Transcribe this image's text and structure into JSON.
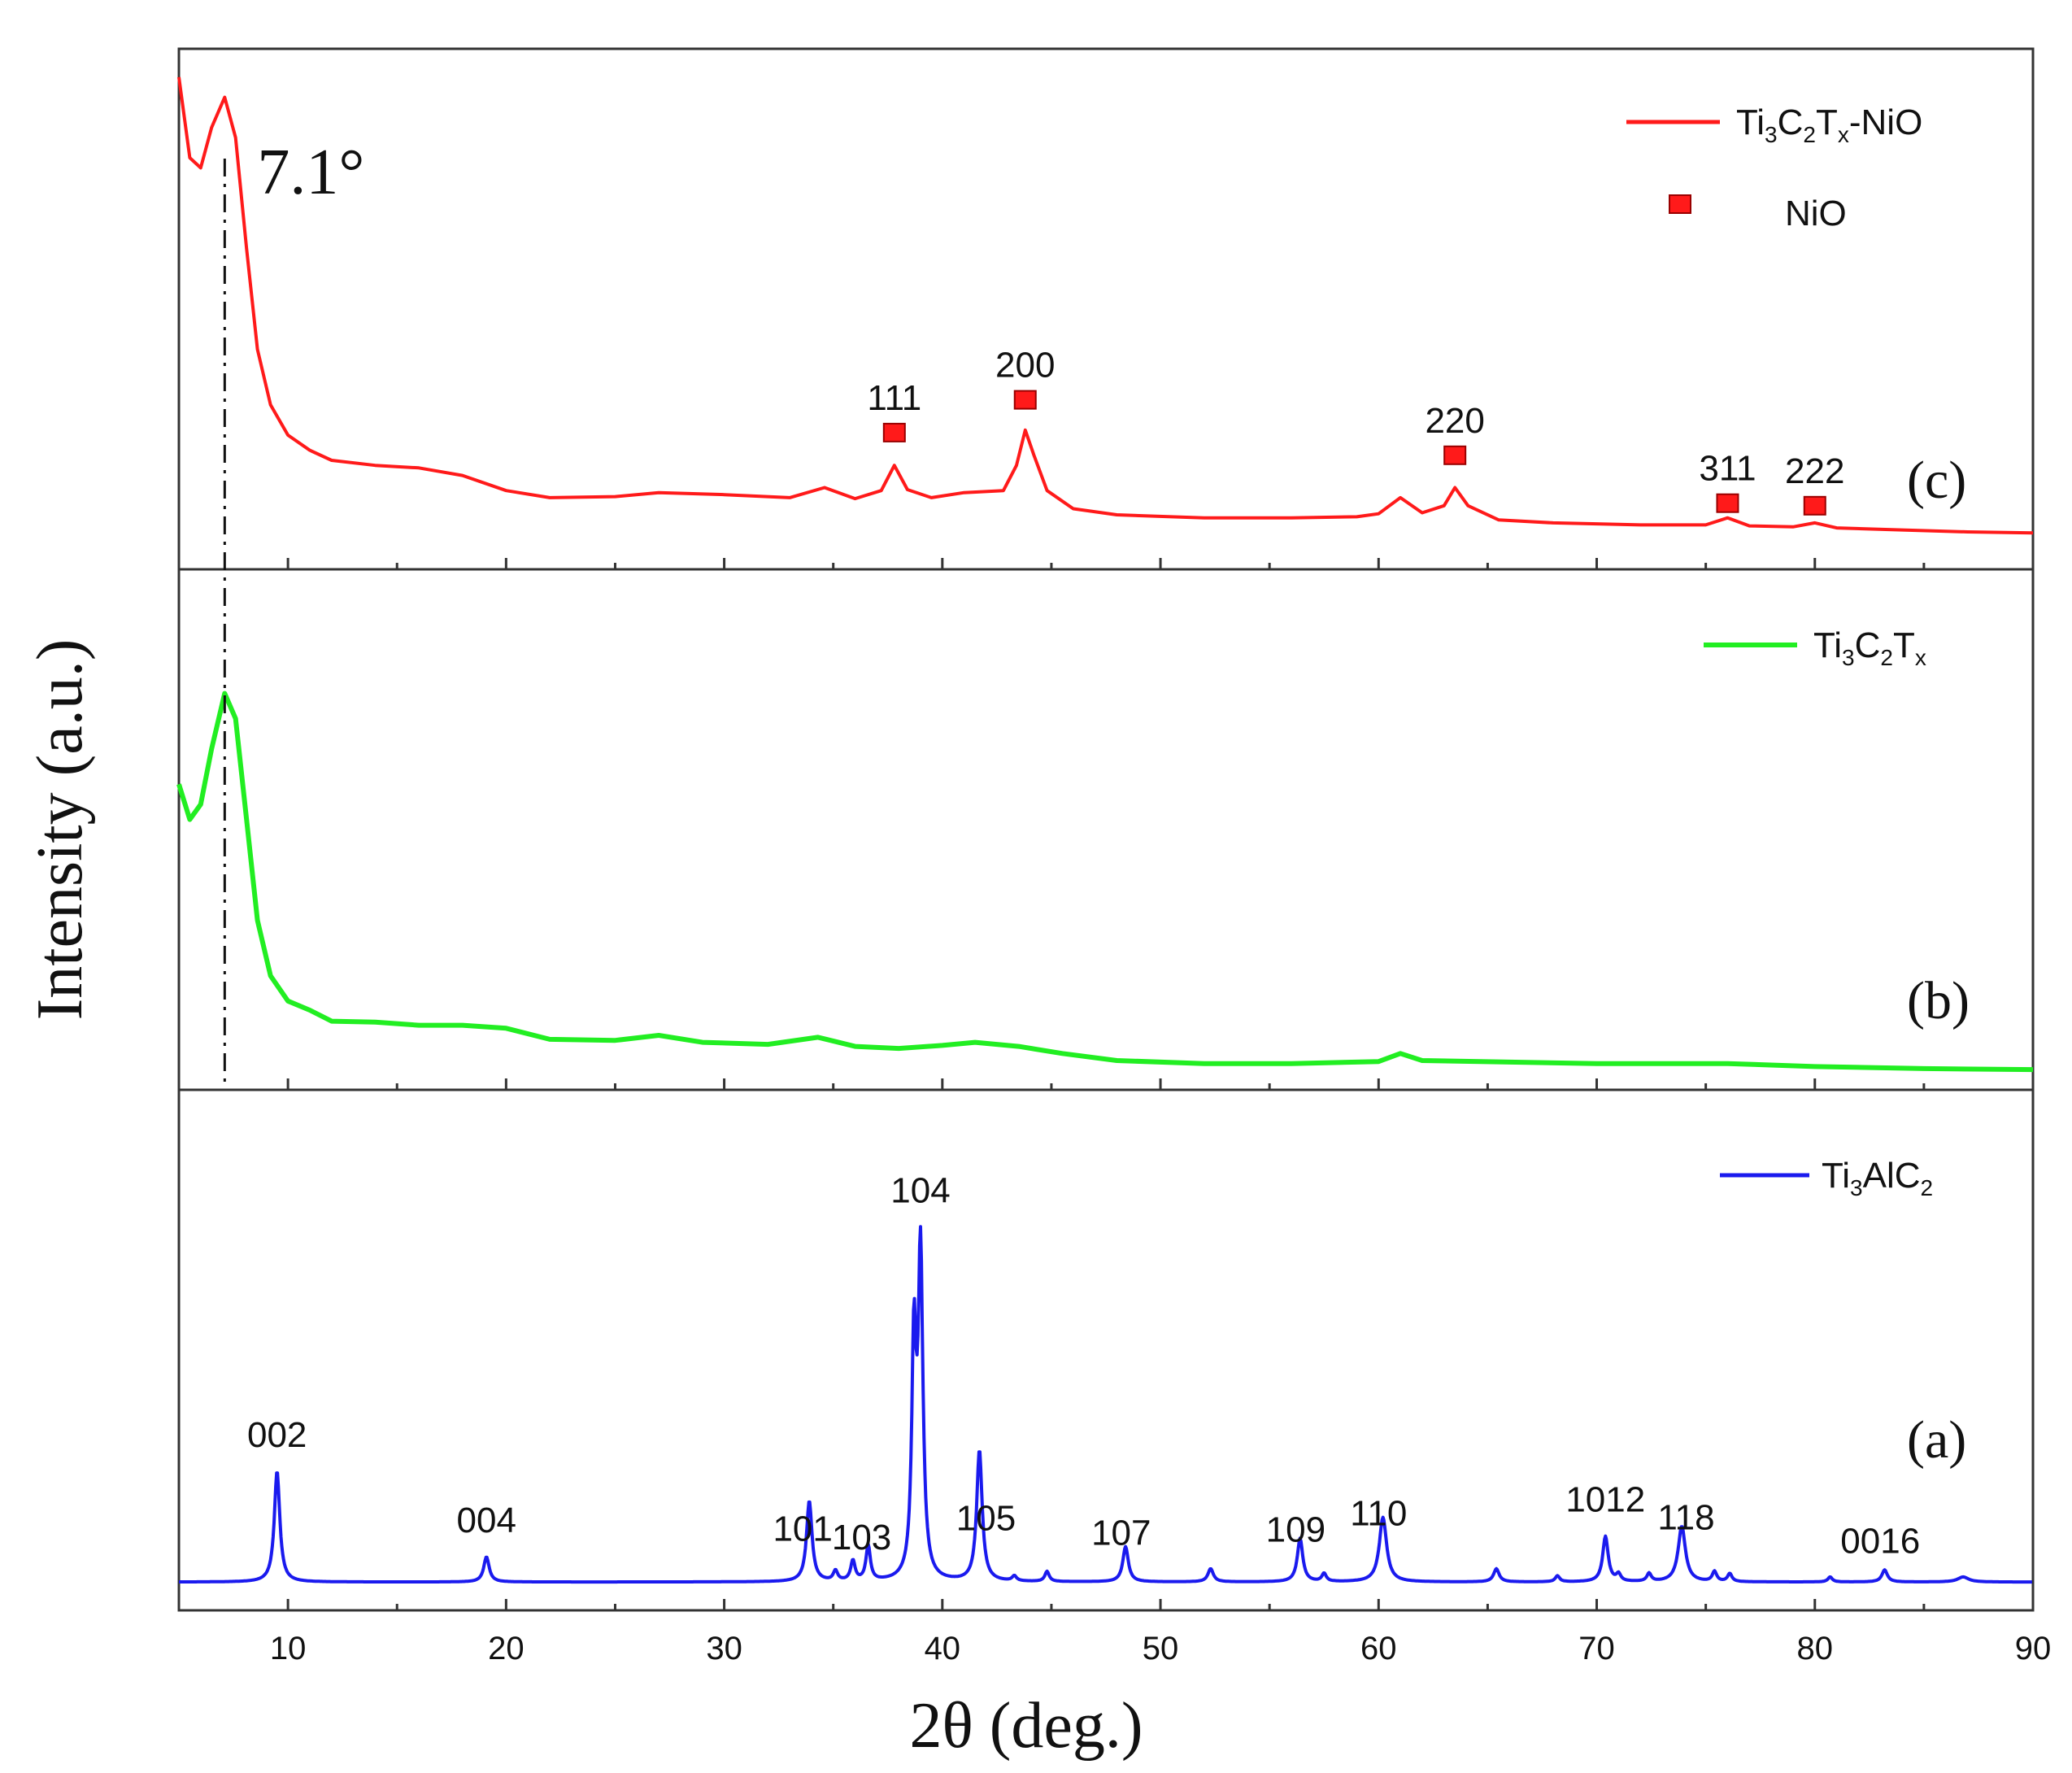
{
  "chart_data": {
    "type": "line",
    "xlabel": "2θ (deg.)",
    "ylabel": "Intensity (a.u.)",
    "xlim": [
      5,
      90
    ],
    "xticks": [
      10,
      20,
      30,
      40,
      50,
      60,
      70,
      80,
      90
    ],
    "xtick_labels": [
      "10",
      "20",
      "30",
      "40",
      "50",
      "60",
      "70",
      "80",
      "90"
    ],
    "reference_line": {
      "x": 7.1,
      "label": "7.1°"
    },
    "panels": [
      {
        "id": "c",
        "panel_label": "(c)",
        "color": "#ff1a1a",
        "legend": {
          "prefix": "Ti",
          "s1": "3",
          "mid": "C",
          "s2": "2",
          "mid2": "T",
          "s3": "x",
          "suffix": "-NiO"
        },
        "marker_legend": {
          "label": "NiO",
          "color": "#ff1a1a"
        },
        "ylim": [
          0,
          100
        ],
        "series": [
          {
            "x": 5,
            "y": 96
          },
          {
            "x": 5.5,
            "y": 80
          },
          {
            "x": 6.0,
            "y": 78
          },
          {
            "x": 6.5,
            "y": 86
          },
          {
            "x": 7.1,
            "y": 92
          },
          {
            "x": 7.6,
            "y": 84
          },
          {
            "x": 8.1,
            "y": 62
          },
          {
            "x": 8.6,
            "y": 42
          },
          {
            "x": 9.2,
            "y": 31
          },
          {
            "x": 10,
            "y": 25
          },
          {
            "x": 11,
            "y": 22
          },
          {
            "x": 12,
            "y": 20
          },
          {
            "x": 14,
            "y": 19
          },
          {
            "x": 16,
            "y": 18.5
          },
          {
            "x": 18,
            "y": 17
          },
          {
            "x": 20,
            "y": 14
          },
          {
            "x": 22,
            "y": 12.6
          },
          {
            "x": 25,
            "y": 12.8
          },
          {
            "x": 27,
            "y": 13.6
          },
          {
            "x": 30,
            "y": 13.2
          },
          {
            "x": 33,
            "y": 12.6
          },
          {
            "x": 34.6,
            "y": 14.6
          },
          {
            "x": 36,
            "y": 12.4
          },
          {
            "x": 37.2,
            "y": 14
          },
          {
            "x": 37.8,
            "y": 19
          },
          {
            "x": 38.4,
            "y": 14.2
          },
          {
            "x": 39.5,
            "y": 12.6
          },
          {
            "x": 41,
            "y": 13.6
          },
          {
            "x": 42.8,
            "y": 14
          },
          {
            "x": 43.4,
            "y": 19
          },
          {
            "x": 43.8,
            "y": 26
          },
          {
            "x": 44.2,
            "y": 21
          },
          {
            "x": 44.8,
            "y": 14
          },
          {
            "x": 46,
            "y": 10.4
          },
          {
            "x": 48,
            "y": 9.2
          },
          {
            "x": 52,
            "y": 8.6
          },
          {
            "x": 56,
            "y": 8.6
          },
          {
            "x": 59,
            "y": 8.8
          },
          {
            "x": 60,
            "y": 9.4
          },
          {
            "x": 61,
            "y": 12.6
          },
          {
            "x": 62,
            "y": 9.6
          },
          {
            "x": 63,
            "y": 11
          },
          {
            "x": 63.5,
            "y": 14.6
          },
          {
            "x": 64.1,
            "y": 11
          },
          {
            "x": 65.5,
            "y": 8.2
          },
          {
            "x": 68,
            "y": 7.6
          },
          {
            "x": 72,
            "y": 7.2
          },
          {
            "x": 75,
            "y": 7.2
          },
          {
            "x": 76,
            "y": 8.6
          },
          {
            "x": 77,
            "y": 7
          },
          {
            "x": 79,
            "y": 6.8
          },
          {
            "x": 80,
            "y": 7.6
          },
          {
            "x": 81,
            "y": 6.6
          },
          {
            "x": 84,
            "y": 6.2
          },
          {
            "x": 87,
            "y": 5.8
          },
          {
            "x": 90,
            "y": 5.6
          }
        ],
        "markers": [
          {
            "x": 37.8,
            "y": 25.5,
            "label": "111"
          },
          {
            "x": 43.8,
            "y": 32,
            "label": "200"
          },
          {
            "x": 63.5,
            "y": 21,
            "label": "220"
          },
          {
            "x": 76,
            "y": 11.5,
            "label": "311"
          },
          {
            "x": 80,
            "y": 11,
            "label": "222"
          }
        ]
      },
      {
        "id": "b",
        "panel_label": "(b)",
        "color": "#22ee22",
        "legend": {
          "prefix": "Ti",
          "s1": "3",
          "mid": "C",
          "s2": "2",
          "mid2": "T",
          "s3": "x",
          "suffix": ""
        },
        "ylim": [
          0,
          100
        ],
        "series": [
          {
            "x": 5,
            "y": 59
          },
          {
            "x": 5.5,
            "y": 52
          },
          {
            "x": 6.0,
            "y": 55
          },
          {
            "x": 6.5,
            "y": 66
          },
          {
            "x": 7.1,
            "y": 77
          },
          {
            "x": 7.6,
            "y": 72
          },
          {
            "x": 8.1,
            "y": 52
          },
          {
            "x": 8.6,
            "y": 32
          },
          {
            "x": 9.2,
            "y": 21
          },
          {
            "x": 10,
            "y": 16
          },
          {
            "x": 11,
            "y": 14.2
          },
          {
            "x": 12,
            "y": 12
          },
          {
            "x": 14,
            "y": 11.8
          },
          {
            "x": 16,
            "y": 11.2
          },
          {
            "x": 18,
            "y": 11.2
          },
          {
            "x": 20,
            "y": 10.6
          },
          {
            "x": 22,
            "y": 8.4
          },
          {
            "x": 25,
            "y": 8.2
          },
          {
            "x": 27,
            "y": 9.2
          },
          {
            "x": 29,
            "y": 7.8
          },
          {
            "x": 32,
            "y": 7.4
          },
          {
            "x": 34.3,
            "y": 8.8
          },
          {
            "x": 36,
            "y": 7
          },
          {
            "x": 38,
            "y": 6.6
          },
          {
            "x": 40,
            "y": 7.2
          },
          {
            "x": 41.5,
            "y": 7.8
          },
          {
            "x": 43.5,
            "y": 7
          },
          {
            "x": 45.5,
            "y": 5.6
          },
          {
            "x": 48,
            "y": 4.2
          },
          {
            "x": 52,
            "y": 3.6
          },
          {
            "x": 56,
            "y": 3.6
          },
          {
            "x": 60,
            "y": 4
          },
          {
            "x": 61,
            "y": 5.6
          },
          {
            "x": 62,
            "y": 4.2
          },
          {
            "x": 70,
            "y": 3.6
          },
          {
            "x": 76,
            "y": 3.6
          },
          {
            "x": 80,
            "y": 3
          },
          {
            "x": 85,
            "y": 2.6
          },
          {
            "x": 90,
            "y": 2.4
          }
        ]
      },
      {
        "id": "a",
        "panel_label": "(a)",
        "color": "#1a1aee",
        "legend": {
          "prefix": "Ti",
          "s1": "3",
          "mid": "AlC",
          "s2": "2",
          "mid2": "",
          "s3": "",
          "suffix": ""
        },
        "ylim": [
          0,
          100
        ],
        "peaks": [
          {
            "x": 9.5,
            "h": 22,
            "w": 0.15
          },
          {
            "x": 19.1,
            "h": 5,
            "w": 0.15
          },
          {
            "x": 33.9,
            "h": 16,
            "w": 0.15
          },
          {
            "x": 35.1,
            "h": 2,
            "w": 0.12
          },
          {
            "x": 35.9,
            "h": 4,
            "w": 0.12
          },
          {
            "x": 36.6,
            "h": 7,
            "w": 0.12
          },
          {
            "x": 38.7,
            "h": 46,
            "w": 0.12
          },
          {
            "x": 39.0,
            "h": 64,
            "w": 0.13
          },
          {
            "x": 41.7,
            "h": 26,
            "w": 0.15
          },
          {
            "x": 43.3,
            "h": 1,
            "w": 0.12
          },
          {
            "x": 44.8,
            "h": 2,
            "w": 0.12
          },
          {
            "x": 48.4,
            "h": 7,
            "w": 0.15
          },
          {
            "x": 52.3,
            "h": 2.6,
            "w": 0.15
          },
          {
            "x": 56.4,
            "h": 8.6,
            "w": 0.15
          },
          {
            "x": 57.5,
            "h": 1.6,
            "w": 0.12
          },
          {
            "x": 60.2,
            "h": 12.8,
            "w": 0.2
          },
          {
            "x": 65.4,
            "h": 2.6,
            "w": 0.15
          },
          {
            "x": 68.2,
            "h": 1.2,
            "w": 0.12
          },
          {
            "x": 70.4,
            "h": 9,
            "w": 0.15
          },
          {
            "x": 71,
            "h": 1.4,
            "w": 0.12
          },
          {
            "x": 72.4,
            "h": 1.6,
            "w": 0.12
          },
          {
            "x": 73.9,
            "h": 11,
            "w": 0.2
          },
          {
            "x": 75.4,
            "h": 2,
            "w": 0.12
          },
          {
            "x": 76.1,
            "h": 1.6,
            "w": 0.12
          },
          {
            "x": 80.7,
            "h": 1,
            "w": 0.12
          },
          {
            "x": 83.2,
            "h": 2.4,
            "w": 0.15
          },
          {
            "x": 86.8,
            "h": 1,
            "w": 0.3
          }
        ],
        "baseline": 4,
        "annotations": [
          {
            "x": 9.5,
            "label": "002"
          },
          {
            "x": 19.1,
            "label": "004"
          },
          {
            "x": 33.6,
            "label": "101"
          },
          {
            "x": 36.3,
            "label": "103"
          },
          {
            "x": 39.0,
            "label": "104"
          },
          {
            "x": 42.0,
            "label": "105"
          },
          {
            "x": 48.2,
            "label": "107"
          },
          {
            "x": 56.2,
            "label": "109"
          },
          {
            "x": 60.0,
            "label": "110"
          },
          {
            "x": 70.4,
            "label": "1012"
          },
          {
            "x": 74.1,
            "label": "118"
          },
          {
            "x": 83.0,
            "label": "0016"
          }
        ]
      }
    ]
  }
}
